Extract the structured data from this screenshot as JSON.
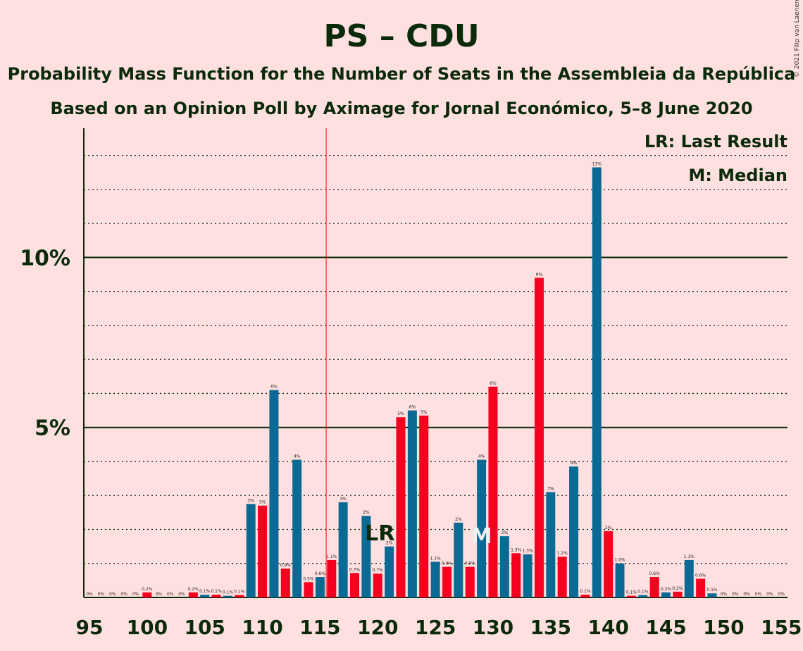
{
  "title": "PS – CDU",
  "subtitle1": "Probability Mass Function for the Number of Seats in the Assembleia da República",
  "subtitle2": "Based on an Opinion Poll by Aximage for Jornal Económico, 5–8 June 2020",
  "copyright": "© 2021 Filip van Laenen",
  "legend": {
    "lr": "LR: Last Result",
    "m": "M: Median"
  },
  "markers": {
    "lr_text": "LR",
    "m_text": "M"
  },
  "colors": {
    "background": "#FFE0E0",
    "bar_even": "#0B6A94",
    "bar_odd": "#F5001E",
    "vline": "#FF0000",
    "text": "#0A2A0A"
  },
  "chart_data": {
    "type": "bar",
    "x_range": [
      95,
      155
    ],
    "x_ticks": [
      "95",
      "100",
      "105",
      "110",
      "115",
      "120",
      "125",
      "130",
      "135",
      "140",
      "145",
      "150",
      "155"
    ],
    "y_ticks": [
      {
        "value": 5,
        "label": "5%"
      },
      {
        "value": 10,
        "label": "10%"
      }
    ],
    "ylim": [
      0,
      13.8
    ],
    "grid_dotted_every": 1,
    "last_result_seat": 120,
    "median_seat": 129,
    "majority_line_seat": 116,
    "bars": [
      {
        "seat": 95,
        "value": 0.0,
        "label": "0%"
      },
      {
        "seat": 96,
        "value": 0.0,
        "label": "0%"
      },
      {
        "seat": 97,
        "value": 0.0,
        "label": "0%"
      },
      {
        "seat": 98,
        "value": 0.0,
        "label": "0%"
      },
      {
        "seat": 99,
        "value": 0.0,
        "label": "0%"
      },
      {
        "seat": 100,
        "value": 0.15,
        "label": "0.2%"
      },
      {
        "seat": 101,
        "value": 0.0,
        "label": "0%"
      },
      {
        "seat": 102,
        "value": 0.0,
        "label": "0%"
      },
      {
        "seat": 103,
        "value": 0.0,
        "label": "0%"
      },
      {
        "seat": 104,
        "value": 0.15,
        "label": "0.2%"
      },
      {
        "seat": 105,
        "value": 0.08,
        "label": "0.1%"
      },
      {
        "seat": 106,
        "value": 0.08,
        "label": "0.1%"
      },
      {
        "seat": 107,
        "value": 0.05,
        "label": "0.1%"
      },
      {
        "seat": 108,
        "value": 0.07,
        "label": "0.1%"
      },
      {
        "seat": 109,
        "value": 2.75,
        "label": "3%"
      },
      {
        "seat": 110,
        "value": 2.7,
        "label": "3%"
      },
      {
        "seat": 111,
        "value": 6.1,
        "label": "6%"
      },
      {
        "seat": 112,
        "value": 0.85,
        "label": "0.9%"
      },
      {
        "seat": 113,
        "value": 4.05,
        "label": "4%"
      },
      {
        "seat": 114,
        "value": 0.45,
        "label": "0.5%"
      },
      {
        "seat": 115,
        "value": 0.6,
        "label": "0.6%"
      },
      {
        "seat": 116,
        "value": 1.1,
        "label": "1.1%"
      },
      {
        "seat": 117,
        "value": 2.8,
        "label": "3%"
      },
      {
        "seat": 118,
        "value": 0.72,
        "label": "0.7%"
      },
      {
        "seat": 119,
        "value": 2.4,
        "label": "2%"
      },
      {
        "seat": 120,
        "value": 0.7,
        "label": "0.7%"
      },
      {
        "seat": 121,
        "value": 1.5,
        "label": "2%"
      },
      {
        "seat": 122,
        "value": 5.3,
        "label": "5%"
      },
      {
        "seat": 123,
        "value": 5.5,
        "label": "6%"
      },
      {
        "seat": 124,
        "value": 5.35,
        "label": "5%"
      },
      {
        "seat": 125,
        "value": 1.05,
        "label": "1.1%"
      },
      {
        "seat": 126,
        "value": 0.9,
        "label": "0.9%"
      },
      {
        "seat": 127,
        "value": 2.2,
        "label": "2%"
      },
      {
        "seat": 128,
        "value": 0.9,
        "label": "0.9%"
      },
      {
        "seat": 129,
        "value": 4.05,
        "label": "4%"
      },
      {
        "seat": 130,
        "value": 6.2,
        "label": "6%"
      },
      {
        "seat": 131,
        "value": 1.8,
        "label": "2%"
      },
      {
        "seat": 132,
        "value": 1.3,
        "label": "1.3%"
      },
      {
        "seat": 133,
        "value": 1.27,
        "label": "1.3%"
      },
      {
        "seat": 134,
        "value": 9.4,
        "label": "9%"
      },
      {
        "seat": 135,
        "value": 3.1,
        "label": "3%"
      },
      {
        "seat": 136,
        "value": 1.2,
        "label": "1.2%"
      },
      {
        "seat": 137,
        "value": 3.85,
        "label": "4%"
      },
      {
        "seat": 138,
        "value": 0.08,
        "label": "0.1%"
      },
      {
        "seat": 139,
        "value": 12.65,
        "label": "13%"
      },
      {
        "seat": 140,
        "value": 1.95,
        "label": "2%"
      },
      {
        "seat": 141,
        "value": 1.0,
        "label": "1.0%"
      },
      {
        "seat": 142,
        "value": 0.05,
        "label": "0.1%"
      },
      {
        "seat": 143,
        "value": 0.07,
        "label": "0.1%"
      },
      {
        "seat": 144,
        "value": 0.6,
        "label": "0.6%"
      },
      {
        "seat": 145,
        "value": 0.15,
        "label": "0.2%"
      },
      {
        "seat": 146,
        "value": 0.17,
        "label": "0.2%"
      },
      {
        "seat": 147,
        "value": 1.1,
        "label": "1.1%"
      },
      {
        "seat": 148,
        "value": 0.55,
        "label": "0.6%"
      },
      {
        "seat": 149,
        "value": 0.12,
        "label": "0.1%"
      },
      {
        "seat": 150,
        "value": 0.0,
        "label": "0%"
      },
      {
        "seat": 151,
        "value": 0.0,
        "label": "0%"
      },
      {
        "seat": 152,
        "value": 0.0,
        "label": "0%"
      },
      {
        "seat": 153,
        "value": 0.0,
        "label": "0%"
      },
      {
        "seat": 154,
        "value": 0.0,
        "label": "0%"
      },
      {
        "seat": 155,
        "value": 0.0,
        "label": "0%"
      }
    ]
  }
}
